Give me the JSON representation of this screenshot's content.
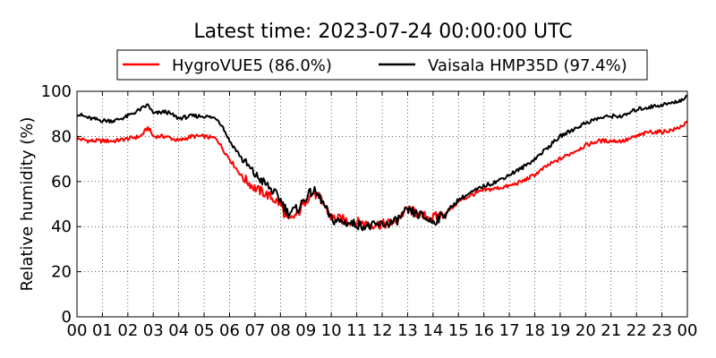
{
  "chart_data": {
    "type": "line",
    "title": "Latest time: 2023-07-24 00:00:00 UTC",
    "xlabel": "",
    "ylabel": "Relative humidity (%)",
    "xlim": [
      0,
      24
    ],
    "ylim": [
      0,
      100
    ],
    "x_ticks": [
      "00",
      "01",
      "02",
      "03",
      "04",
      "05",
      "06",
      "07",
      "08",
      "09",
      "10",
      "11",
      "12",
      "13",
      "14",
      "15",
      "16",
      "17",
      "18",
      "19",
      "20",
      "21",
      "22",
      "23",
      "00"
    ],
    "y_ticks": [
      0,
      20,
      40,
      60,
      80,
      100
    ],
    "grid": true,
    "legend_position": "top",
    "series": [
      {
        "name": "HygroVUE5 (86.0%)",
        "color": "#ff0000",
        "x": [
          0,
          0.5,
          1,
          1.5,
          2,
          2.5,
          2.8,
          3,
          3.5,
          4,
          4.5,
          5,
          5.5,
          5.7,
          6,
          6.5,
          7,
          7.5,
          8,
          8.3,
          8.7,
          9,
          9.3,
          9.6,
          10,
          10.5,
          11,
          11.5,
          12,
          12.5,
          13,
          13.5,
          14,
          14.5,
          15,
          15.5,
          16,
          16.5,
          17,
          17.5,
          18,
          18.5,
          19,
          19.5,
          20,
          20.5,
          21,
          21.5,
          22,
          22.5,
          23,
          23.5,
          24
        ],
        "y": [
          79,
          78,
          78,
          78,
          79,
          80,
          84,
          80,
          80,
          78,
          80,
          80,
          79,
          75,
          70,
          62,
          57,
          54,
          50,
          42,
          46,
          52,
          55,
          52,
          44,
          43,
          42,
          41,
          41,
          42,
          48,
          45,
          44,
          46,
          51,
          54,
          56,
          57,
          58,
          60,
          63,
          67,
          70,
          73,
          76,
          78,
          78,
          78,
          80,
          82,
          82,
          83,
          86
        ]
      },
      {
        "name": "Vaisala HMP35D (97.4%)",
        "color": "#000000",
        "x": [
          0,
          0.5,
          1,
          1.5,
          2,
          2.5,
          2.8,
          3,
          3.5,
          4,
          4.5,
          5,
          5.5,
          5.7,
          6,
          6.5,
          7,
          7.5,
          8,
          8.3,
          8.7,
          9,
          9.3,
          9.6,
          10,
          10.5,
          11,
          11.5,
          12,
          12.5,
          13,
          13.5,
          14,
          14.5,
          15,
          15.5,
          16,
          16.5,
          17,
          17.5,
          18,
          18.5,
          19,
          19.5,
          20,
          20.5,
          21,
          21.5,
          22,
          22.5,
          23,
          23.5,
          24
        ],
        "y": [
          90,
          88,
          87,
          87,
          89,
          92,
          94,
          90,
          91,
          88,
          89,
          89,
          88,
          85,
          78,
          70,
          63,
          58,
          52,
          46,
          48,
          53,
          56,
          52,
          43,
          42,
          41,
          40,
          41,
          42,
          47,
          45,
          42,
          46,
          52,
          55,
          58,
          60,
          63,
          66,
          70,
          75,
          80,
          83,
          86,
          88,
          89,
          89,
          92,
          93,
          94,
          95,
          97.4
        ]
      }
    ]
  }
}
